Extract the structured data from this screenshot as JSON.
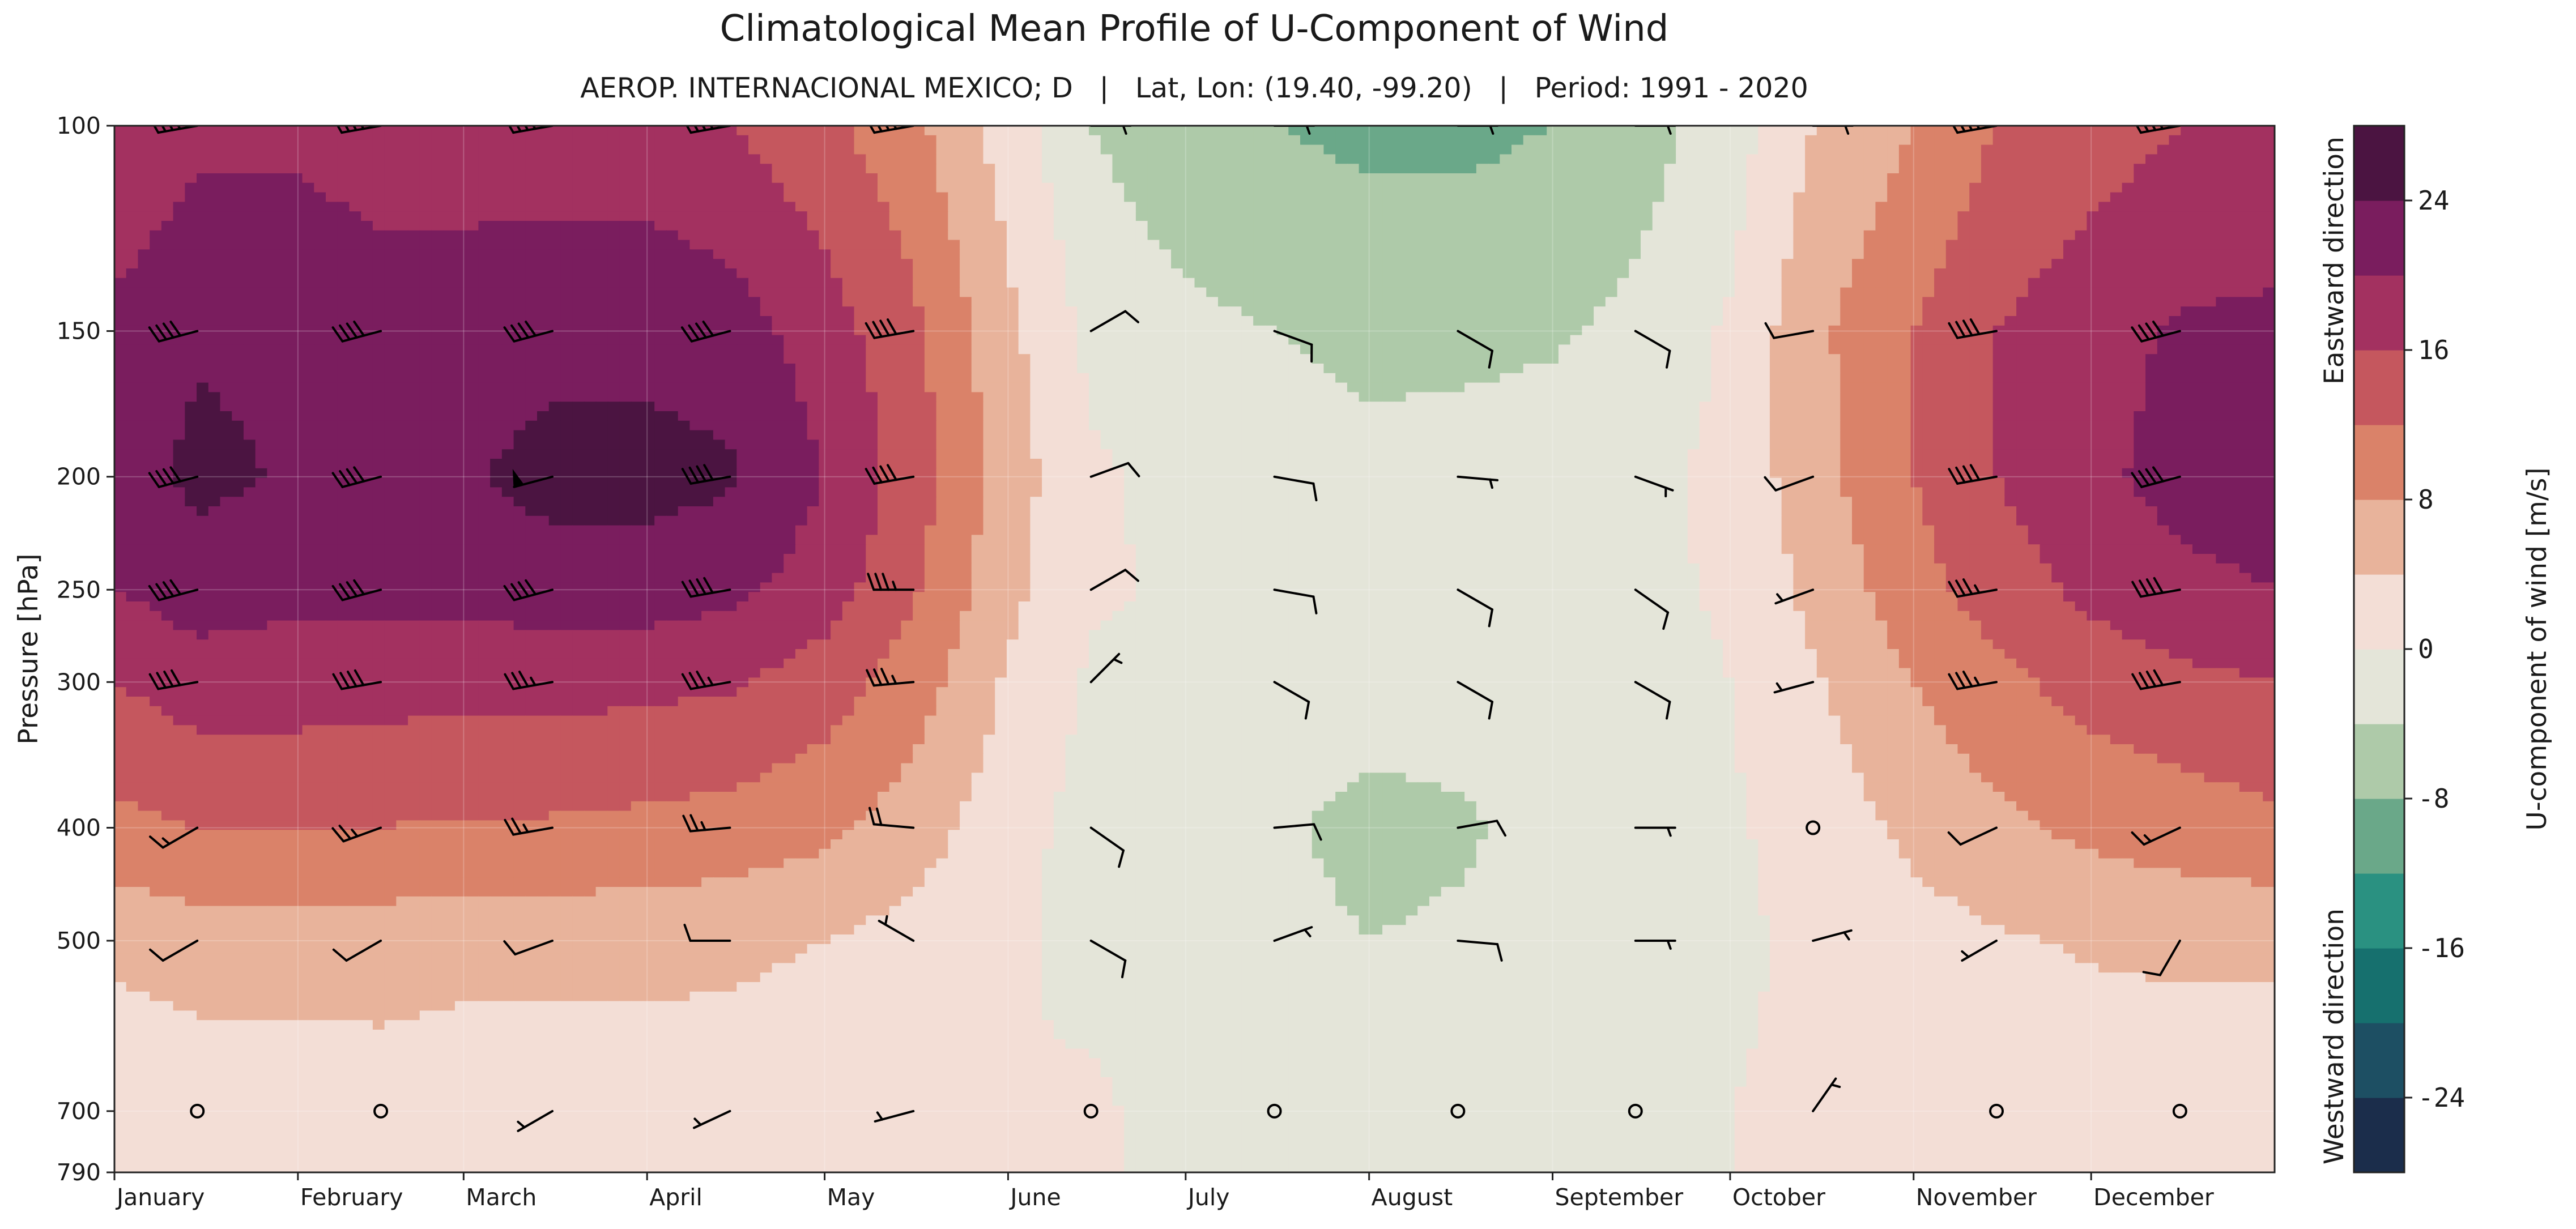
{
  "chart_data": {
    "type": "heatmap",
    "title": "Climatological Mean Profile of U-Component of Wind",
    "subtitle": "AEROP. INTERNACIONAL MEXICO; D   |   Lat, Lon: (19.40, -99.20)   |   Period: 1991 - 2020",
    "xlabel": "",
    "ylabel": "Pressure [hPa]",
    "x_categories": [
      "January",
      "February",
      "March",
      "April",
      "May",
      "June",
      "July",
      "August",
      "September",
      "October",
      "November",
      "December"
    ],
    "x_range_days": [
      1,
      366
    ],
    "month_start_days": [
      1,
      32,
      60,
      91,
      121,
      152,
      182,
      213,
      244,
      274,
      305,
      335
    ],
    "y_ticks": [
      100,
      150,
      200,
      250,
      300,
      400,
      500,
      700,
      790
    ],
    "y_range": [
      790,
      100
    ],
    "y_scale": "log",
    "y_inverted": true,
    "grid": true,
    "colorbar": {
      "label": "U-component of wind [m/s]",
      "levels": [
        -28,
        -24,
        -20,
        -16,
        -12,
        -8,
        -4,
        0,
        4,
        8,
        12,
        16,
        20,
        24,
        28
      ],
      "colors": [
        "#1b2d4b",
        "#1d4f63",
        "#16706e",
        "#2a9181",
        "#6aa889",
        "#aecaa9",
        "#e4e5d9",
        "#f3ded6",
        "#e8b39b",
        "#da8269",
        "#c5575e",
        "#a33160",
        "#7a1d5e",
        "#4b1441"
      ],
      "tick_values": [
        -24,
        -16,
        -8,
        0,
        8,
        16,
        24
      ],
      "tick_labels": [
        "-24",
        "-16",
        "-8",
        "0",
        "8",
        "16",
        "24"
      ],
      "upper_annotation": "Eastward direction",
      "lower_annotation": "Westward direction"
    },
    "u_profiles": {
      "levels_hPa": [
        100,
        150,
        200,
        250,
        300,
        400,
        500,
        700,
        790
      ],
      "columns": [
        {
          "day": 1,
          "u": [
            16,
            21,
            22,
            20,
            16,
            11,
            5,
            1,
            0
          ]
        },
        {
          "day": 15,
          "u": [
            19,
            23.5,
            25,
            22,
            18,
            12,
            6,
            1.5,
            0
          ]
        },
        {
          "day": 32,
          "u": [
            19,
            23,
            23.5,
            21,
            18,
            12,
            6,
            1.5,
            0
          ]
        },
        {
          "day": 46,
          "u": [
            18,
            22,
            23,
            21,
            17.5,
            12,
            6,
            2,
            0
          ]
        },
        {
          "day": 60,
          "u": [
            18,
            22,
            23.5,
            21,
            17.5,
            11.5,
            5.5,
            1.5,
            0
          ]
        },
        {
          "day": 75,
          "u": [
            18,
            22.5,
            25.5,
            22,
            17.5,
            11.5,
            5.5,
            1.5,
            0
          ]
        },
        {
          "day": 91,
          "u": [
            18,
            22.5,
            25.5,
            22,
            17,
            11,
            5.5,
            1.5,
            0
          ]
        },
        {
          "day": 105,
          "u": [
            16,
            22,
            24.5,
            21,
            16.5,
            10.5,
            5,
            1.5,
            0
          ]
        },
        {
          "day": 121,
          "u": [
            13,
            18,
            20,
            18,
            14,
            9,
            4,
            1,
            0
          ]
        },
        {
          "day": 136,
          "u": [
            9,
            13,
            14,
            12.5,
            10,
            6,
            2.5,
            0.5,
            0
          ]
        },
        {
          "day": 152,
          "u": [
            2,
            5,
            6,
            5,
            3.5,
            1.5,
            0.5,
            0,
            0
          ]
        },
        {
          "day": 166,
          "u": [
            -4,
            -1,
            0.5,
            0.5,
            -0.5,
            -1.5,
            -1,
            0.5,
            0
          ]
        },
        {
          "day": 182,
          "u": [
            -7,
            -3,
            -1,
            -0.5,
            -1,
            -2,
            -2,
            -1,
            0
          ]
        },
        {
          "day": 197,
          "u": [
            -8,
            -4,
            -1.5,
            -1.5,
            -2,
            -3.5,
            -3,
            -1.5,
            0
          ]
        },
        {
          "day": 213,
          "u": [
            -9,
            -5,
            -3,
            -2,
            -2.5,
            -5,
            -4,
            -1.5,
            0
          ]
        },
        {
          "day": 228,
          "u": [
            -9,
            -5,
            -2.5,
            -2,
            -2.5,
            -4.5,
            -3.5,
            -1.5,
            0
          ]
        },
        {
          "day": 244,
          "u": [
            -8,
            -4.5,
            -2,
            -1.5,
            -2,
            -3,
            -2.5,
            -1,
            0
          ]
        },
        {
          "day": 258,
          "u": [
            -6,
            -3,
            -1,
            -1,
            -1.5,
            -2,
            -2,
            -0.5,
            0
          ]
        },
        {
          "day": 274,
          "u": [
            -2,
            0.5,
            1,
            0.5,
            0,
            -0.5,
            -0.5,
            0,
            0
          ]
        },
        {
          "day": 288,
          "u": [
            4,
            7,
            6.5,
            5,
            3.5,
            1.5,
            0.5,
            0.5,
            0
          ]
        },
        {
          "day": 305,
          "u": [
            8,
            12,
            12,
            10.5,
            8,
            5,
            2.5,
            0.5,
            0
          ]
        },
        {
          "day": 319,
          "u": [
            12,
            16,
            16,
            14,
            11,
            7,
            3.5,
            1,
            0
          ]
        },
        {
          "day": 335,
          "u": [
            14,
            18.5,
            19,
            17,
            13.5,
            9,
            4.5,
            1,
            0
          ]
        },
        {
          "day": 350,
          "u": [
            16,
            20.5,
            21.5,
            19,
            15,
            10,
            5,
            1,
            0
          ]
        },
        {
          "day": 366,
          "u": [
            16,
            21,
            22,
            20,
            16,
            11,
            5,
            1,
            0
          ]
        }
      ]
    },
    "wind_barbs": {
      "days": [
        15,
        46,
        75,
        105,
        136,
        166,
        197,
        228,
        258,
        288,
        319,
        350
      ],
      "levels_hPa": [
        100,
        150,
        200,
        250,
        300,
        400,
        500,
        700
      ],
      "speed_kt": [
        [
          40,
          40,
          40,
          40,
          40,
          5,
          5,
          5,
          5,
          5,
          40,
          40
        ],
        [
          40,
          40,
          40,
          40,
          40,
          10,
          10,
          10,
          10,
          10,
          40,
          40
        ],
        [
          40,
          40,
          50,
          40,
          40,
          10,
          10,
          5,
          5,
          10,
          40,
          40
        ],
        [
          40,
          40,
          40,
          40,
          35,
          10,
          10,
          10,
          10,
          5,
          35,
          40
        ],
        [
          40,
          40,
          35,
          35,
          35,
          5,
          10,
          10,
          10,
          5,
          35,
          40
        ],
        [
          15,
          25,
          25,
          25,
          20,
          10,
          10,
          10,
          5,
          0,
          10,
          15
        ],
        [
          10,
          10,
          10,
          10,
          5,
          10,
          5,
          10,
          5,
          5,
          5,
          10
        ],
        [
          0,
          0,
          5,
          5,
          5,
          0,
          0,
          0,
          0,
          5,
          0,
          0
        ]
      ],
      "direction_deg": [
        [
          260,
          260,
          260,
          260,
          260,
          90,
          90,
          90,
          90,
          90,
          260,
          260
        ],
        [
          255,
          255,
          255,
          255,
          260,
          60,
          110,
          120,
          120,
          260,
          260,
          255
        ],
        [
          255,
          255,
          255,
          260,
          260,
          70,
          100,
          95,
          110,
          250,
          260,
          255
        ],
        [
          255,
          255,
          255,
          260,
          270,
          60,
          100,
          120,
          125,
          250,
          260,
          260
        ],
        [
          260,
          260,
          260,
          260,
          265,
          45,
          120,
          120,
          120,
          255,
          260,
          260
        ],
        [
          240,
          250,
          260,
          265,
          275,
          125,
          85,
          80,
          90,
          90,
          245,
          245
        ],
        [
          240,
          240,
          250,
          270,
          300,
          120,
          70,
          95,
          90,
          75,
          240,
          210
        ],
        [
          0,
          0,
          240,
          245,
          255,
          0,
          0,
          0,
          0,
          35,
          0,
          0
        ]
      ]
    }
  }
}
